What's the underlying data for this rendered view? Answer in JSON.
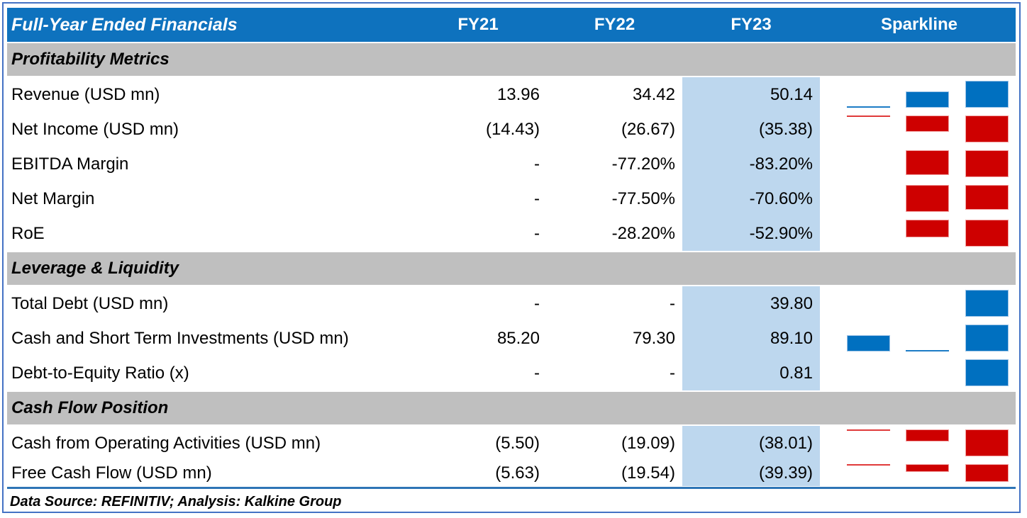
{
  "chart_data": {
    "type": "table",
    "title": "Full-Year Ended Financials",
    "year_columns": [
      "FY21",
      "FY22",
      "FY23"
    ],
    "sparkline_column": "Sparkline",
    "highlighted_column": "FY23",
    "sections": [
      {
        "label": "Profitability Metrics",
        "rows": [
          {
            "label": "Revenue (USD mn)",
            "display": [
              "13.96",
              "34.42",
              "50.14"
            ],
            "values": [
              13.96,
              34.42,
              50.14
            ],
            "spark": {
              "color": "blue",
              "align": "bottom",
              "bars": [
                0.05,
                0.6,
                1.0
              ]
            }
          },
          {
            "label": "Net Income (USD mn)",
            "display": [
              "(14.43)",
              "(26.67)",
              "(35.38)"
            ],
            "values": [
              -14.43,
              -26.67,
              -35.38
            ],
            "spark": {
              "color": "red",
              "align": "top",
              "bars": [
                0.05,
                0.6,
                1.0
              ]
            }
          },
          {
            "label": "EBITDA Margin",
            "display": [
              "-",
              "-77.20%",
              "-83.20%"
            ],
            "values": [
              null,
              -77.2,
              -83.2
            ],
            "spark": {
              "color": "red",
              "align": "top",
              "bars": [
                0,
                0.93,
                1.0
              ]
            }
          },
          {
            "label": "Net Margin",
            "display": [
              "-",
              "-77.50%",
              "-70.60%"
            ],
            "values": [
              null,
              -77.5,
              -70.6
            ],
            "spark": {
              "color": "red",
              "align": "top",
              "bars": [
                0,
                1.0,
                0.93
              ]
            }
          },
          {
            "label": "RoE",
            "display": [
              "-",
              "-28.20%",
              "-52.90%"
            ],
            "values": [
              null,
              -28.2,
              -52.9
            ],
            "spark": {
              "color": "red",
              "align": "top",
              "bars": [
                0,
                0.65,
                1.0
              ]
            }
          }
        ]
      },
      {
        "label": "Leverage & Liquidity",
        "rows": [
          {
            "label": "Total Debt (USD mn)",
            "display": [
              "-",
              "-",
              "39.80"
            ],
            "values": [
              null,
              null,
              39.8
            ],
            "spark": {
              "color": "blue",
              "align": "bottom",
              "bars": [
                0,
                0,
                1.0
              ]
            }
          },
          {
            "label": "Cash and Short Term Investments (USD mn)",
            "display": [
              "85.20",
              "79.30",
              "89.10"
            ],
            "values": [
              85.2,
              79.3,
              89.1
            ],
            "spark": {
              "color": "blue",
              "align": "bottom",
              "bars": [
                0.6,
                0.05,
                1.0
              ]
            }
          },
          {
            "label": "Debt-to-Equity Ratio (x)",
            "display": [
              "-",
              "-",
              "0.81"
            ],
            "values": [
              null,
              null,
              0.81
            ],
            "spark": {
              "color": "blue",
              "align": "bottom",
              "bars": [
                0,
                0,
                1.0
              ]
            }
          }
        ]
      },
      {
        "label": "Cash Flow Position",
        "rows": [
          {
            "label": "Cash from Operating Activities (USD mn)",
            "display": [
              "(5.50)",
              "(19.09)",
              "(38.01)"
            ],
            "values": [
              -5.5,
              -19.09,
              -38.01
            ],
            "spark": {
              "color": "red",
              "align": "top",
              "bars": [
                0.05,
                0.45,
                1.0
              ]
            }
          },
          {
            "label": "Free Cash Flow (USD mn)",
            "display": [
              "(5.63)",
              "(19.54)",
              "(39.39)"
            ],
            "values": [
              -5.63,
              -19.54,
              -39.39
            ],
            "spark": {
              "color": "red",
              "align": "top",
              "bars": [
                0.05,
                0.42,
                1.0
              ]
            }
          }
        ]
      }
    ]
  },
  "footer": {
    "source_note": "Data Source: REFINITIV; Analysis: Kalkine Group"
  },
  "colors": {
    "header_bg": "#0E72BE",
    "header_text": "#FFFFFF",
    "section_bg": "#BFBFBF",
    "fy23_highlight": "#BDD7EE",
    "bar_blue": "#0070C0",
    "bar_red": "#CE0000",
    "frame_border": "#4472C4",
    "separator": "#2E75B6",
    "text": "#000000"
  }
}
